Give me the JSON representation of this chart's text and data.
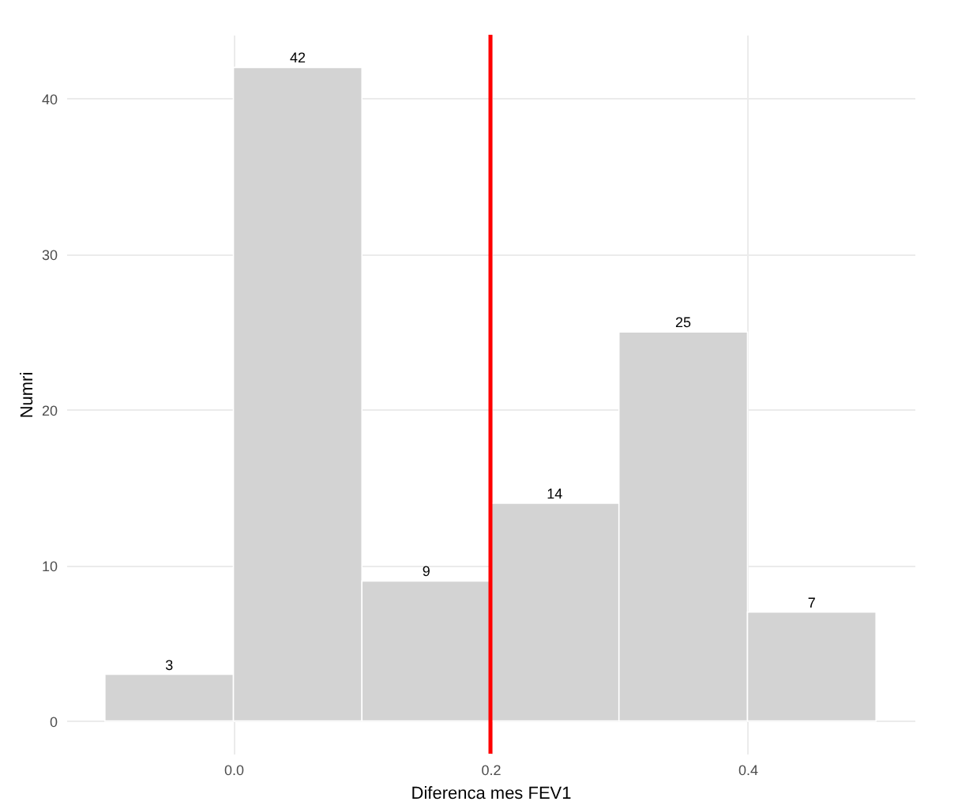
{
  "chart_data": {
    "type": "histogram",
    "xlabel": "Diferenca mes FEV1",
    "ylabel": "Numri",
    "bins": [
      -0.1,
      0,
      0.1,
      0.2,
      0.3,
      0.4,
      0.5
    ],
    "values": [
      3,
      42,
      9,
      14,
      25,
      7
    ],
    "color": "#d3d3d3",
    "xlim": [
      -0.13,
      0.53
    ],
    "xticks": [
      {
        "value": 0,
        "label": "0.0"
      },
      0.2,
      0.4
    ],
    "ylim": [
      -2.1,
      44.1
    ],
    "yticks": [
      0,
      10,
      20,
      30,
      40
    ],
    "grid": true,
    "data_labels": true,
    "ref_lines": [
      {
        "axis": "x",
        "value": 0.2,
        "color": "#ff0000"
      }
    ]
  }
}
